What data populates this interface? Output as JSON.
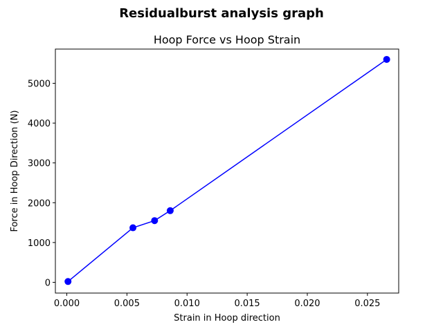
{
  "chart_data": {
    "type": "line",
    "suptitle": "Residualburst analysis graph",
    "title": "Hoop Force vs Hoop Strain",
    "xlabel": "Strain in Hoop direction",
    "ylabel": "Force in Hoop Direction (N)",
    "xlim": [
      -0.00095,
      0.0276
    ],
    "ylim": [
      -270,
      5860
    ],
    "xticks": [
      0.0,
      0.005,
      0.01,
      0.015,
      0.02,
      0.025
    ],
    "xtick_labels": [
      "0.000",
      "0.005",
      "0.010",
      "0.015",
      "0.020",
      "0.025"
    ],
    "yticks": [
      0,
      1000,
      2000,
      3000,
      4000,
      5000
    ],
    "ytick_labels": [
      "0",
      "1000",
      "2000",
      "3000",
      "4000",
      "5000"
    ],
    "grid": false,
    "series": [
      {
        "color": "#0000ff",
        "marker": "circle",
        "points": [
          {
            "x": 0.0001,
            "y": 20
          },
          {
            "x": 0.0055,
            "y": 1370
          },
          {
            "x": 0.0073,
            "y": 1550
          },
          {
            "x": 0.0086,
            "y": 1800
          },
          {
            "x": 0.0266,
            "y": 5600
          }
        ]
      }
    ]
  }
}
